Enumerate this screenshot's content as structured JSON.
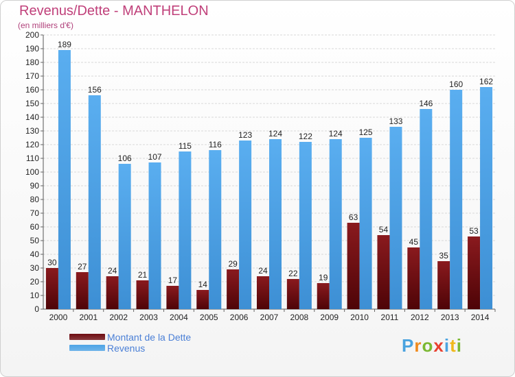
{
  "header": {
    "title": "Revenus/Dette - MANTHELON",
    "subtitle": "(en milliers d'€)"
  },
  "legend": {
    "items": [
      {
        "label": "Montant de la Dette",
        "color": "#6e0b10"
      },
      {
        "label": "Revenus",
        "color": "#4ea4e6"
      }
    ]
  },
  "logo": {
    "letters": [
      {
        "char": "P",
        "color": "#4aa3df"
      },
      {
        "char": "r",
        "color": "#f08a1c"
      },
      {
        "char": "o",
        "color": "#7bb832"
      },
      {
        "char": "x",
        "color": "#e8402f"
      },
      {
        "char": "i",
        "color": "#4aa3df"
      },
      {
        "char": "t",
        "color": "#f0b81c"
      },
      {
        "char": "i",
        "color": "#7bb832"
      }
    ]
  },
  "chart_data": {
    "type": "bar",
    "title": "Revenus/Dette - MANTHELON",
    "subtitle": "(en milliers d'€)",
    "categories": [
      "2000",
      "2001",
      "2002",
      "2003",
      "2004",
      "2005",
      "2006",
      "2007",
      "2008",
      "2009",
      "2010",
      "2011",
      "2012",
      "2013",
      "2014"
    ],
    "series": [
      {
        "name": "Montant de la Dette",
        "color": "#6e0b10",
        "values": [
          30,
          27,
          24,
          21,
          17,
          14,
          29,
          24,
          22,
          19,
          63,
          54,
          45,
          35,
          53
        ]
      },
      {
        "name": "Revenus",
        "color": "#4ea4e6",
        "values": [
          189,
          156,
          106,
          107,
          115,
          116,
          123,
          124,
          122,
          124,
          125,
          133,
          146,
          160,
          162
        ]
      }
    ],
    "ylim": [
      0,
      200
    ],
    "ytick_step": 10,
    "grid": true,
    "legend_position": "bottom-left"
  }
}
